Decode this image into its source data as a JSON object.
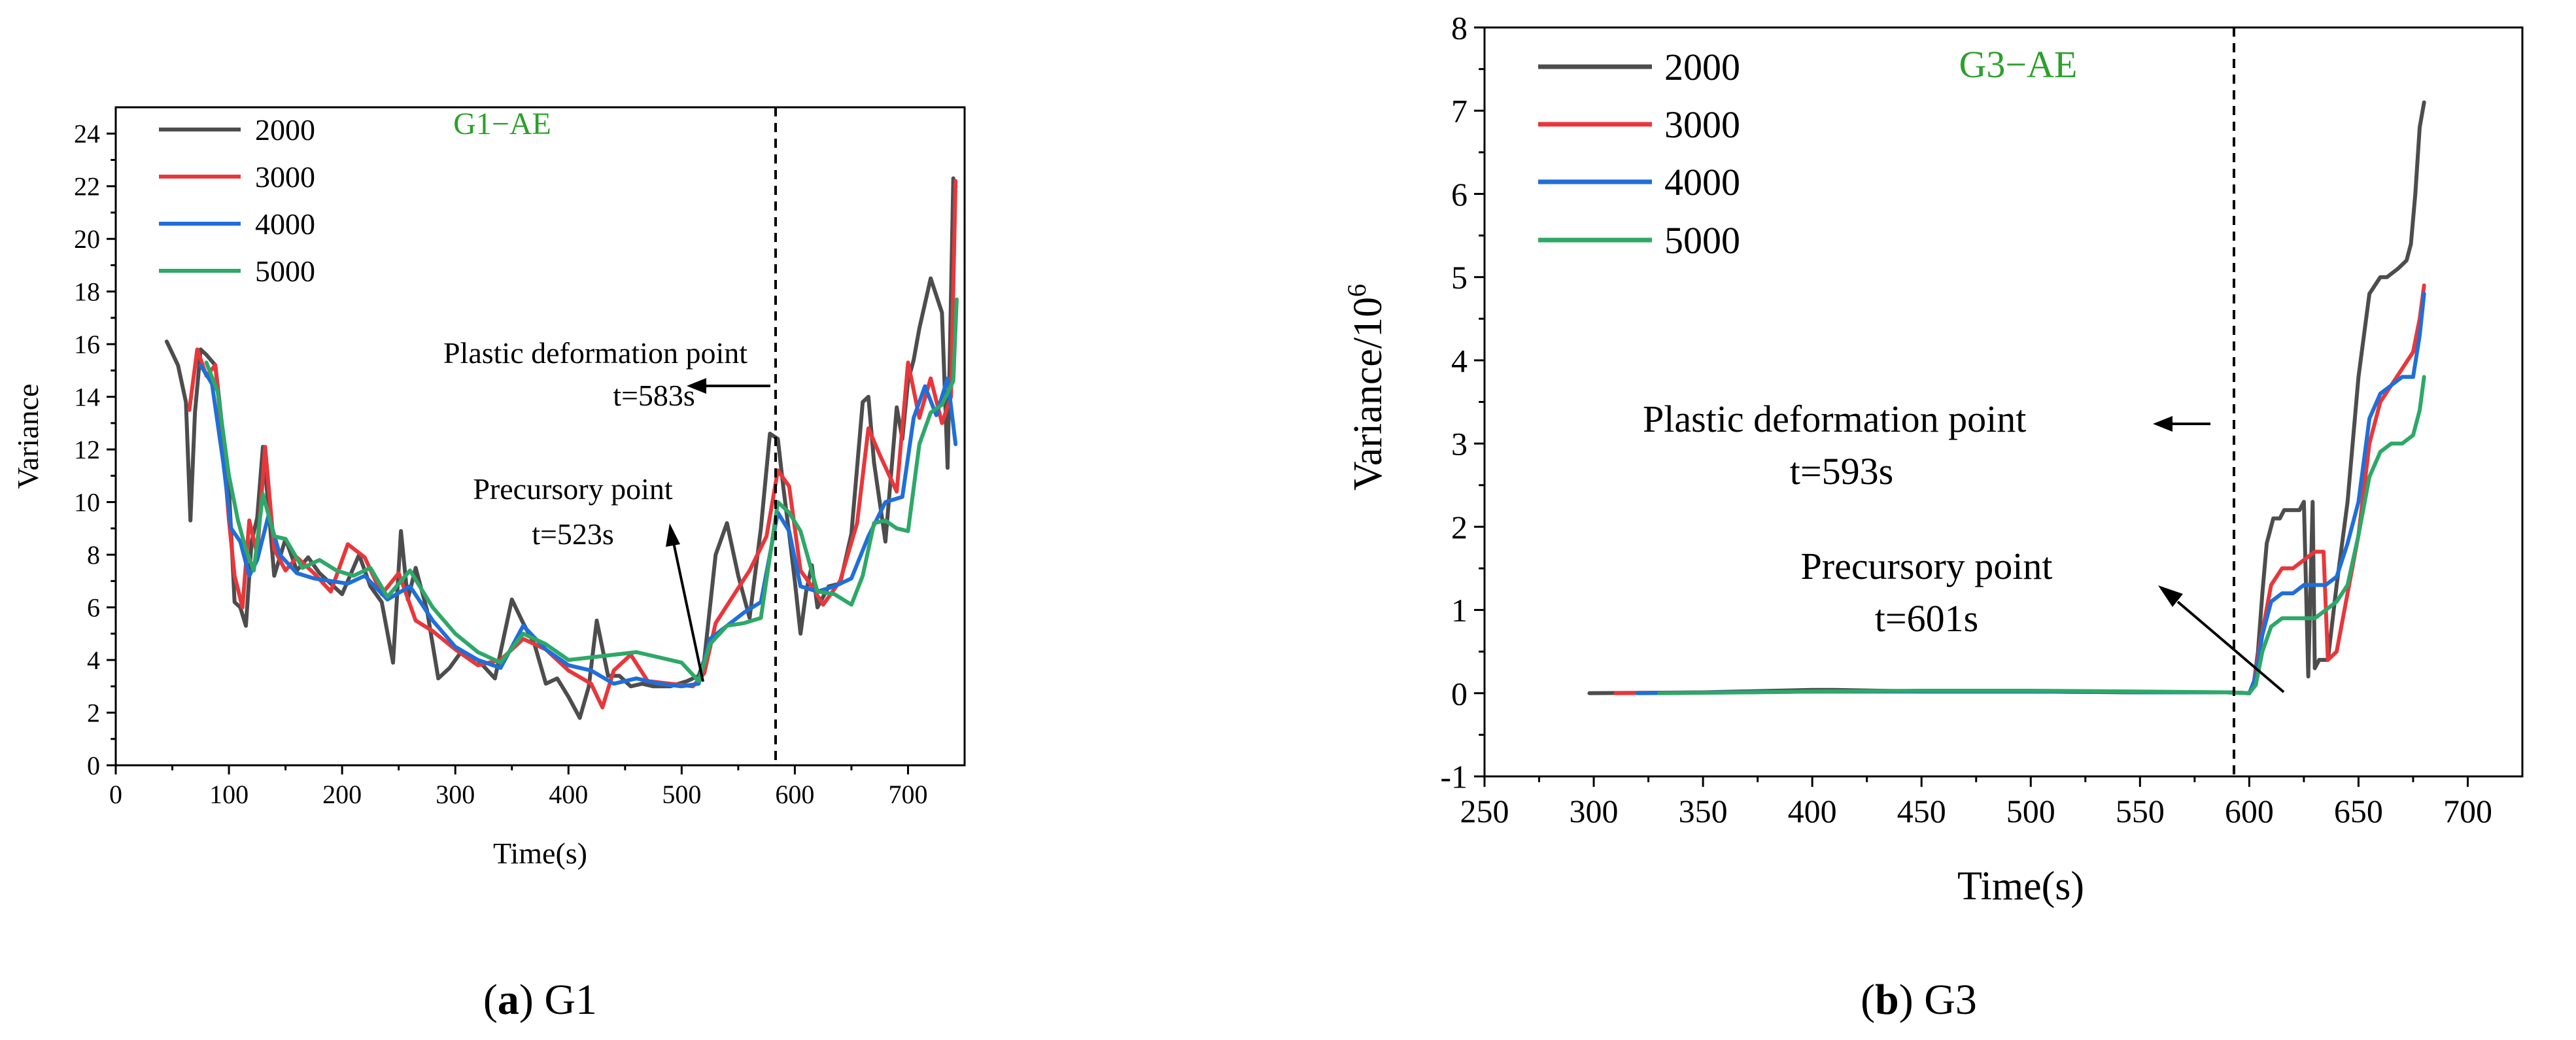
{
  "chart_data": [
    {
      "type": "line",
      "panel": "a",
      "caption_letter": "a",
      "caption_rest": ") G1",
      "caption_open": "(",
      "title": "G1−AE",
      "title_color": "#2ca02c",
      "xlabel": "Time(s)",
      "ylabel": "Variance",
      "xlim": [
        0,
        750
      ],
      "ylim": [
        0,
        25
      ],
      "xticks": [
        0,
        100,
        200,
        300,
        400,
        500,
        600,
        700
      ],
      "xtick_labels": [
        "0",
        "100",
        "200",
        "300",
        "400",
        "500",
        "600",
        "700"
      ],
      "yticks": [
        0,
        2,
        4,
        6,
        8,
        10,
        12,
        14,
        16,
        18,
        20,
        22,
        24
      ],
      "ytick_labels": [
        "0",
        "2",
        "4",
        "6",
        "8",
        "10",
        "12",
        "14",
        "16",
        "18",
        "20",
        "22",
        "24"
      ],
      "vline_x": 583,
      "annotations": [
        {
          "line1": "Plastic deformation point",
          "line2": "t=583s"
        },
        {
          "line1": "Precursory point",
          "line2": "t=523s"
        }
      ],
      "legend_position": "top-left",
      "series": [
        {
          "name": "2000",
          "color": "#4d4d4d",
          "x": [
            45,
            55,
            62,
            66,
            70,
            75,
            80,
            88,
            95,
            100,
            105,
            110,
            115,
            120,
            125,
            130,
            135,
            140,
            150,
            160,
            170,
            180,
            200,
            215,
            225,
            235,
            245,
            252,
            258,
            265,
            275,
            285,
            295,
            305,
            320,
            335,
            350,
            360,
            370,
            380,
            390,
            400,
            410,
            418,
            425,
            435,
            445,
            455,
            465,
            475,
            490,
            505,
            515,
            520,
            530,
            540,
            550,
            560,
            570,
            578,
            585,
            590,
            595,
            600,
            605,
            610,
            615,
            620,
            630,
            640,
            650,
            660,
            665,
            670,
            680,
            690,
            695,
            700,
            705,
            710,
            720,
            730,
            735,
            740
          ],
          "y": [
            16.1,
            15.2,
            13.8,
            9.3,
            13.4,
            15.8,
            15.6,
            15.2,
            12.5,
            10.5,
            6.2,
            6.0,
            5.3,
            8.5,
            9.4,
            12.1,
            9.8,
            7.2,
            8.6,
            7.4,
            7.9,
            7.3,
            6.5,
            8.0,
            6.8,
            6.2,
            3.9,
            8.9,
            6.3,
            7.5,
            5.9,
            3.3,
            3.7,
            4.3,
            4.0,
            3.3,
            6.3,
            5.4,
            4.6,
            3.1,
            3.3,
            2.6,
            1.8,
            3.0,
            5.5,
            3.4,
            3.4,
            3.0,
            3.1,
            3.0,
            3.0,
            3.2,
            3.4,
            4.0,
            8.0,
            9.2,
            7.2,
            5.6,
            9.0,
            12.6,
            12.4,
            10.5,
            8.8,
            7.0,
            5.0,
            6.6,
            7.6,
            6.0,
            6.8,
            6.9,
            8.8,
            13.8,
            14.0,
            11.5,
            8.5,
            13.6,
            12.4,
            14.6,
            15.4,
            16.6,
            18.5,
            17.2,
            11.3,
            22.3
          ]
        },
        {
          "name": "3000",
          "color": "#e8373b",
          "x": [
            65,
            72,
            80,
            88,
            95,
            100,
            105,
            112,
            118,
            125,
            132,
            140,
            150,
            160,
            175,
            190,
            205,
            220,
            235,
            250,
            265,
            280,
            300,
            320,
            340,
            360,
            380,
            400,
            420,
            430,
            440,
            455,
            470,
            490,
            510,
            520,
            530,
            545,
            560,
            575,
            585,
            595,
            605,
            615,
            625,
            640,
            655,
            665,
            675,
            690,
            700,
            710,
            720,
            730,
            738,
            742
          ],
          "y": [
            13.5,
            15.8,
            14.8,
            15.2,
            12.0,
            9.3,
            7.2,
            6.0,
            9.3,
            8.0,
            12.1,
            8.2,
            7.4,
            7.9,
            7.3,
            6.6,
            8.4,
            7.9,
            6.5,
            7.3,
            5.5,
            5.1,
            4.4,
            3.8,
            4.0,
            4.8,
            4.4,
            3.6,
            3.1,
            2.2,
            3.6,
            4.2,
            3.2,
            3.1,
            3.0,
            3.5,
            5.4,
            6.4,
            7.4,
            8.7,
            11.2,
            10.6,
            7.4,
            6.8,
            6.1,
            7.0,
            9.2,
            12.8,
            11.8,
            10.4,
            15.3,
            13.2,
            14.7,
            13.0,
            14.0,
            22.2
          ]
        },
        {
          "name": "4000",
          "color": "#1f6fd9",
          "x": [
            75,
            85,
            95,
            102,
            110,
            118,
            125,
            135,
            145,
            160,
            175,
            190,
            205,
            220,
            240,
            260,
            280,
            300,
            320,
            340,
            360,
            380,
            400,
            420,
            440,
            460,
            480,
            500,
            515,
            525,
            540,
            555,
            570,
            585,
            595,
            605,
            620,
            635,
            650,
            665,
            680,
            695,
            705,
            715,
            725,
            735,
            742
          ],
          "y": [
            15.2,
            14.5,
            11.5,
            9.0,
            8.5,
            7.2,
            7.8,
            9.5,
            8.0,
            7.3,
            7.1,
            7.0,
            6.9,
            7.2,
            6.3,
            6.8,
            5.5,
            4.5,
            4.0,
            3.7,
            5.3,
            4.4,
            3.8,
            3.6,
            3.1,
            3.3,
            3.1,
            3.0,
            3.1,
            4.8,
            5.3,
            5.8,
            6.2,
            9.6,
            8.9,
            6.8,
            6.6,
            6.8,
            7.1,
            8.7,
            10.0,
            10.2,
            13.2,
            14.4,
            13.3,
            14.7,
            12.2
          ]
        },
        {
          "name": "5000",
          "color": "#2ea868",
          "x": [
            80,
            90,
            100,
            108,
            115,
            122,
            130,
            140,
            150,
            165,
            180,
            195,
            210,
            225,
            240,
            260,
            280,
            300,
            320,
            340,
            360,
            380,
            400,
            420,
            440,
            460,
            480,
            500,
            515,
            525,
            540,
            555,
            570,
            585,
            595,
            605,
            620,
            635,
            650,
            660,
            670,
            680,
            690,
            700,
            710,
            720,
            730,
            740,
            743
          ],
          "y": [
            15.3,
            14.2,
            11.0,
            9.3,
            8.2,
            7.4,
            10.3,
            8.7,
            8.6,
            7.5,
            7.8,
            7.4,
            7.2,
            7.5,
            6.4,
            7.4,
            6.0,
            5.0,
            4.3,
            3.9,
            5.0,
            4.6,
            4.0,
            4.1,
            4.2,
            4.3,
            4.1,
            3.9,
            3.2,
            4.6,
            5.3,
            5.4,
            5.6,
            10.0,
            9.6,
            8.9,
            6.6,
            6.5,
            6.1,
            7.2,
            9.2,
            9.3,
            9.0,
            8.9,
            12.2,
            13.4,
            13.7,
            14.6,
            17.7
          ]
        }
      ]
    },
    {
      "type": "line",
      "panel": "b",
      "caption_letter": "b",
      "caption_rest": ") G3",
      "caption_open": "(",
      "title": "G3−AE",
      "title_color": "#2ca02c",
      "xlabel": "Time(s)",
      "ylabel_main": "Variance/10",
      "ylabel_sup": "6",
      "xlim": [
        250,
        725
      ],
      "ylim": [
        -1,
        8
      ],
      "xticks": [
        250,
        300,
        350,
        400,
        450,
        500,
        550,
        600,
        650,
        700
      ],
      "xtick_labels": [
        "250",
        "300",
        "350",
        "400",
        "450",
        "500",
        "550",
        "600",
        "650",
        "700"
      ],
      "yticks": [
        -1,
        0,
        1,
        2,
        3,
        4,
        5,
        6,
        7,
        8
      ],
      "ytick_labels": [
        "-1",
        "0",
        "1",
        "2",
        "3",
        "4",
        "5",
        "6",
        "7",
        "8"
      ],
      "vline_x": 593,
      "annotations": [
        {
          "line1": "Plastic deformation point",
          "line2": "t=593s"
        },
        {
          "line1": "Precursory point",
          "line2": "t=601s"
        }
      ],
      "legend_position": "top-left",
      "series": [
        {
          "name": "2000",
          "color": "#4d4d4d",
          "x": [
            298,
            350,
            400,
            410,
            450,
            500,
            560,
            590,
            600,
            602,
            604,
            606,
            608,
            611,
            614,
            616,
            620,
            623,
            625,
            627,
            629,
            630,
            632,
            636,
            640,
            645,
            650,
            655,
            660,
            663,
            668,
            672,
            674,
            676,
            678,
            680
          ],
          "y": [
            0,
            0.01,
            0.04,
            0.04,
            0.02,
            0.02,
            0.01,
            0.01,
            0.0,
            0.1,
            0.5,
            1.2,
            1.8,
            2.1,
            2.1,
            2.2,
            2.2,
            2.2,
            2.3,
            0.2,
            2.3,
            0.3,
            0.4,
            0.4,
            1.3,
            2.3,
            3.8,
            4.8,
            5.0,
            5.0,
            5.1,
            5.2,
            5.4,
            6.0,
            6.8,
            7.1
          ]
        },
        {
          "name": "3000",
          "color": "#e8373b",
          "x": [
            310,
            360,
            400,
            450,
            500,
            550,
            590,
            600,
            602,
            605,
            610,
            615,
            620,
            625,
            630,
            634,
            636,
            640,
            645,
            650,
            655,
            660,
            665,
            670,
            675,
            678,
            680
          ],
          "y": [
            0,
            0.01,
            0.02,
            0.02,
            0.02,
            0.01,
            0.01,
            0.0,
            0.1,
            0.6,
            1.3,
            1.5,
            1.5,
            1.6,
            1.7,
            1.7,
            0.4,
            0.5,
            1.2,
            1.9,
            3.0,
            3.5,
            3.7,
            3.9,
            4.1,
            4.5,
            4.9
          ]
        },
        {
          "name": "4000",
          "color": "#1f6fd9",
          "x": [
            320,
            360,
            400,
            450,
            500,
            550,
            590,
            600,
            603,
            606,
            610,
            615,
            620,
            625,
            630,
            635,
            640,
            645,
            650,
            655,
            660,
            665,
            670,
            675,
            678,
            680
          ],
          "y": [
            0,
            0.01,
            0.02,
            0.02,
            0.02,
            0.01,
            0.01,
            0.0,
            0.2,
            0.7,
            1.1,
            1.2,
            1.2,
            1.3,
            1.3,
            1.3,
            1.4,
            1.8,
            2.3,
            3.3,
            3.6,
            3.7,
            3.8,
            3.8,
            4.3,
            4.8
          ]
        },
        {
          "name": "5000",
          "color": "#2ea868",
          "x": [
            330,
            370,
            400,
            450,
            500,
            550,
            590,
            600,
            603,
            606,
            610,
            615,
            620,
            625,
            630,
            635,
            640,
            645,
            650,
            655,
            660,
            665,
            670,
            675,
            678,
            680
          ],
          "y": [
            0,
            0.01,
            0.02,
            0.03,
            0.03,
            0.02,
            0.01,
            0.0,
            0.1,
            0.5,
            0.8,
            0.9,
            0.9,
            0.9,
            0.9,
            1.0,
            1.1,
            1.3,
            1.9,
            2.6,
            2.9,
            3.0,
            3.0,
            3.1,
            3.4,
            3.8
          ]
        }
      ]
    }
  ]
}
